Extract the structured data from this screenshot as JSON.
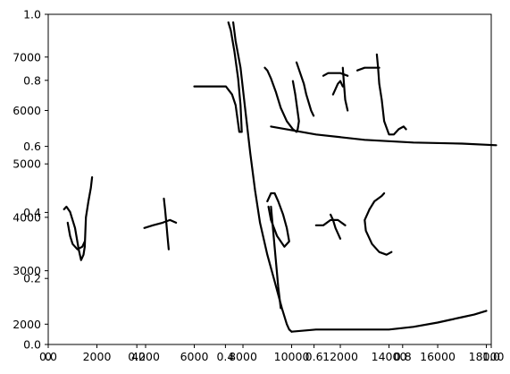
{
  "chart_data": [
    {
      "type": "axes",
      "title": "",
      "xlabel": "",
      "ylabel": "",
      "xlim": [
        0,
        1
      ],
      "ylim": [
        0,
        1
      ],
      "x_ticks": [
        "0.0",
        "0.2",
        "0.4",
        "0.6",
        "0.8",
        "1.0"
      ],
      "y_ticks": [
        "0.0",
        "0.2",
        "0.4",
        "0.6",
        "0.8",
        "1.0"
      ],
      "grid": false
    },
    {
      "type": "line",
      "title": "",
      "xlabel": "",
      "ylabel": "",
      "xlim": [
        0,
        18200
      ],
      "ylim": [
        1620,
        7800
      ],
      "x_ticks": [
        "0",
        "2000",
        "4000",
        "6000",
        "8000",
        "10000",
        "12000",
        "14000",
        "16000",
        "18000"
      ],
      "x_tick_values": [
        0,
        2000,
        4000,
        6000,
        8000,
        10000,
        12000,
        14000,
        16000,
        18000
      ],
      "y_ticks": [
        "2000",
        "3000",
        "4000",
        "5000",
        "6000",
        "7000"
      ],
      "y_tick_values": [
        2000,
        3000,
        4000,
        5000,
        6000,
        7000
      ],
      "color": "#000000",
      "grid": false,
      "series": [
        {
          "x": [
            7400,
            7500,
            7650,
            7800,
            7900,
            7950,
            7850,
            7700,
            7550,
            7300,
            6000
          ],
          "y": [
            7650,
            7500,
            7100,
            6600,
            6100,
            5600,
            5600,
            6100,
            6300,
            6450,
            6450
          ]
        },
        {
          "x": [
            7600,
            7700,
            7900,
            8100,
            8300,
            8500,
            8700,
            9000,
            9300,
            9600,
            9800,
            9900,
            10000
          ],
          "y": [
            7650,
            7300,
            6800,
            6000,
            5200,
            4500,
            3900,
            3300,
            2800,
            2300,
            2000,
            1900,
            1860
          ]
        },
        {
          "x": [
            10000,
            11000,
            12000,
            13000,
            14000,
            15000,
            16000,
            16500,
            17000,
            17500,
            18000
          ],
          "y": [
            1860,
            1900,
            1900,
            1900,
            1900,
            1950,
            2030,
            2080,
            2130,
            2180,
            2250
          ]
        },
        {
          "x": [
            650,
            750,
            900,
            1100,
            1250,
            1350,
            1450,
            1500
          ],
          "y": [
            4150,
            4200,
            4100,
            3800,
            3400,
            3200,
            3300,
            3450
          ]
        },
        {
          "x": [
            1500,
            1550,
            1650,
            1750,
            1800
          ],
          "y": [
            3450,
            4000,
            4300,
            4550,
            4750
          ]
        },
        {
          "x": [
            800,
            900,
            1000,
            1200,
            1400,
            1500
          ],
          "y": [
            3900,
            3650,
            3500,
            3400,
            3450,
            3550
          ]
        },
        {
          "x": [
            3950,
            4300,
            4700,
            5000,
            5250
          ],
          "y": [
            3800,
            3850,
            3900,
            3950,
            3900
          ]
        },
        {
          "x": [
            4750,
            4800,
            4850,
            4900,
            4950
          ],
          "y": [
            4350,
            4150,
            3900,
            3650,
            3400
          ]
        },
        {
          "x": [
            9150,
            11000,
            13000,
            15000,
            17000,
            18400
          ],
          "y": [
            5700,
            5550,
            5450,
            5400,
            5380,
            5350
          ]
        },
        {
          "x": [
            8900,
            9000,
            9150,
            9350,
            9550,
            9800,
            10050,
            10200,
            10250,
            10300,
            10150,
            10050
          ],
          "y": [
            6800,
            6750,
            6600,
            6350,
            6050,
            5800,
            5650,
            5600,
            5650,
            5800,
            6300,
            6550
          ]
        },
        {
          "x": [
            10200,
            10350,
            10500,
            10600,
            10700,
            10800,
            10900
          ],
          "y": [
            6900,
            6700,
            6500,
            6300,
            6150,
            6000,
            5900
          ]
        },
        {
          "x": [
            11700,
            11800,
            11900,
            12000,
            12100
          ],
          "y": [
            6300,
            6400,
            6500,
            6550,
            6450
          ]
        },
        {
          "x": [
            11300,
            11500,
            11800,
            12000,
            12300
          ],
          "y": [
            6650,
            6700,
            6700,
            6700,
            6650
          ]
        },
        {
          "x": [
            12100,
            12150,
            12200,
            12300
          ],
          "y": [
            6800,
            6500,
            6200,
            6000
          ]
        },
        {
          "x": [
            12700,
            13000,
            13300,
            13600
          ],
          "y": [
            6750,
            6800,
            6800,
            6800
          ]
        },
        {
          "x": [
            13500,
            13550,
            13600,
            13700,
            13800,
            14000,
            14200,
            14400,
            14600,
            14700
          ],
          "y": [
            7050,
            6800,
            6500,
            6200,
            5800,
            5550,
            5550,
            5650,
            5700,
            5650
          ]
        },
        {
          "x": [
            9000,
            9150,
            9300,
            9450,
            9650,
            9800,
            9900,
            9700,
            9400,
            9150,
            9050
          ],
          "y": [
            4300,
            4450,
            4450,
            4300,
            4050,
            3800,
            3550,
            3450,
            3650,
            3950,
            4200
          ]
        },
        {
          "x": [
            9150,
            9250,
            9350,
            9450,
            9550
          ],
          "y": [
            4200,
            3700,
            3200,
            2700,
            2300
          ]
        },
        {
          "x": [
            11000,
            11300,
            11600,
            11900,
            12200
          ],
          "y": [
            3850,
            3850,
            3950,
            3950,
            3850
          ]
        },
        {
          "x": [
            11600,
            11700,
            11800,
            11900,
            12000
          ],
          "y": [
            4050,
            3950,
            3800,
            3700,
            3600
          ]
        },
        {
          "x": [
            13200,
            13000,
            13050,
            13300,
            13600,
            13900,
            14100
          ],
          "y": [
            4150,
            3950,
            3750,
            3500,
            3350,
            3300,
            3350
          ]
        },
        {
          "x": [
            13200,
            13400,
            13700,
            13800
          ],
          "y": [
            4150,
            4300,
            4400,
            4450
          ]
        }
      ]
    }
  ]
}
